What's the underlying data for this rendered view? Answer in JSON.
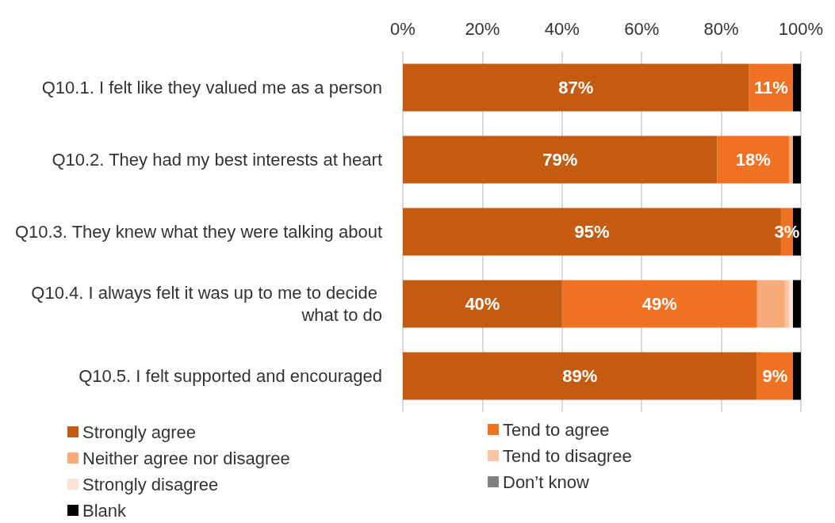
{
  "chart_data": {
    "type": "bar",
    "orientation": "horizontal",
    "stacked": true,
    "categories": [
      "Q10.1. I felt like they valued me as a person",
      "Q10.2. They had my best interests at heart",
      "Q10.3. They knew what they were talking about",
      "Q10.4. I always felt it was up to me to decide what to do",
      "Q10.5. I felt supported and encouraged"
    ],
    "series": [
      {
        "name": "Strongly agree",
        "color": "#c55a11",
        "values": [
          87,
          79,
          95,
          40,
          89
        ],
        "value_labels": [
          "87%",
          "79%",
          "95%",
          "40%",
          "89%"
        ]
      },
      {
        "name": "Tend to agree",
        "color": "#f07122",
        "values": [
          11,
          18,
          3,
          49,
          9
        ],
        "value_labels": [
          "11%",
          "18%",
          "3%",
          "49%",
          "9%"
        ]
      },
      {
        "name": "Neither agree nor disagree",
        "color": "#f8aa78",
        "values": [
          0,
          1,
          0,
          7,
          0
        ]
      },
      {
        "name": "Tend to disagree",
        "color": "#fbc4a3",
        "values": [
          0,
          0,
          0,
          1,
          0
        ]
      },
      {
        "name": "Strongly disagree",
        "color": "#fde3d7",
        "values": [
          0,
          0,
          0,
          1,
          0
        ]
      },
      {
        "name": "Don’t know",
        "color": "#808080",
        "values": [
          0,
          0,
          0,
          0,
          0
        ]
      },
      {
        "name": "Blank",
        "color": "#000000",
        "values": [
          2,
          2,
          2,
          2,
          2
        ]
      }
    ],
    "xlim": [
      0,
      100
    ],
    "xticks": [
      {
        "value": 0,
        "label": "0%"
      },
      {
        "value": 20,
        "label": "20%"
      },
      {
        "value": 40,
        "label": "40%"
      },
      {
        "value": 60,
        "label": "60%"
      },
      {
        "value": 80,
        "label": "80%"
      },
      {
        "value": 100,
        "label": "100%"
      }
    ],
    "grid": "x",
    "legend": "bottom"
  }
}
